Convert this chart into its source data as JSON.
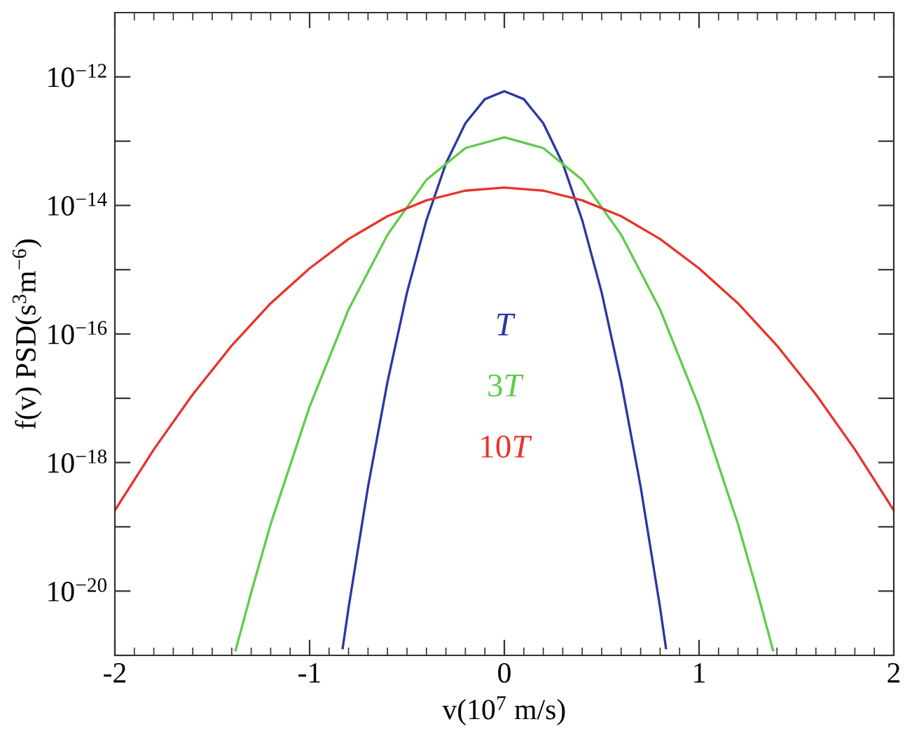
{
  "chart_data": {
    "type": "line",
    "xlabel": "v(10$^{7}$ m/s)",
    "ylabel": "f(v) PSD(s$^{3}$m$^{−6}$)",
    "log": "y",
    "grid": false,
    "legend": false,
    "xlim": [
      -2,
      2
    ],
    "xticks": [
      -2,
      -1,
      0,
      1,
      2
    ],
    "ylim": [
      1e-21,
      1e-11
    ],
    "yticks": [
      {
        "value": 1e-21,
        "label": null
      },
      {
        "value": 1e-20,
        "label": "10$^{−20}$"
      },
      {
        "value": 1e-19,
        "label": null
      },
      {
        "value": 1e-18,
        "label": "10$^{−18}$"
      },
      {
        "value": 1e-17,
        "label": null
      },
      {
        "value": 1e-16,
        "label": "10$^{−16}$"
      },
      {
        "value": 1e-15,
        "label": null
      },
      {
        "value": 1e-14,
        "label": "10$^{−14}$"
      },
      {
        "value": 1e-13,
        "label": null
      },
      {
        "value": 1e-12,
        "label": "10$^{−12}$"
      }
    ],
    "series": [
      {
        "name": "T",
        "color": "#2b37a0",
        "x": [
          -0.83,
          -0.8,
          -0.7,
          -0.6,
          -0.5,
          -0.4,
          -0.3,
          -0.2,
          -0.1,
          0,
          0.1,
          0.2,
          0.3,
          0.4,
          0.5,
          0.6,
          0.7,
          0.8,
          0.83
        ],
        "values": [
          1.3e-21,
          5.5e-21,
          4.2e-19,
          1.8e-17,
          4.4e-16,
          5.9e-15,
          4.5e-14,
          1.9e-13,
          4.5e-13,
          6e-13,
          4.5e-13,
          1.9e-13,
          4.5e-14,
          5.9e-15,
          4.4e-16,
          1.8e-17,
          4.2e-19,
          5.5e-21,
          1.3e-21
        ]
      },
      {
        "name": "3T",
        "color": "#5fcc4a",
        "x": [
          -1.38,
          -1.3,
          -1.2,
          -1.0,
          -0.8,
          -0.6,
          -0.4,
          -0.2,
          0,
          0.2,
          0.4,
          0.6,
          0.8,
          1.0,
          1.2,
          1.3,
          1.38
        ],
        "values": [
          1.2e-21,
          9.5e-21,
          1.1e-19,
          7.4e-18,
          2.4e-16,
          3.5e-15,
          2.5e-14,
          7.8e-14,
          1.15e-13,
          7.8e-14,
          2.5e-14,
          3.5e-15,
          2.4e-16,
          7.4e-18,
          1.1e-19,
          9.5e-21,
          1.2e-21
        ]
      },
      {
        "name": "10T",
        "color": "#e8332a",
        "x": [
          -2,
          -1.8,
          -1.6,
          -1.4,
          -1.2,
          -1.0,
          -0.8,
          -0.6,
          -0.4,
          -0.2,
          0,
          0.2,
          0.4,
          0.6,
          0.8,
          1.0,
          1.2,
          1.4,
          1.6,
          1.8,
          2
        ],
        "values": [
          1.8e-19,
          1.6e-18,
          1.15e-17,
          6.6e-17,
          3e-16,
          1.05e-15,
          3e-15,
          6.8e-15,
          1.2e-14,
          1.7e-14,
          1.9e-14,
          1.7e-14,
          1.2e-14,
          6.8e-15,
          3e-15,
          1.05e-15,
          3e-16,
          6.6e-17,
          1.15e-17,
          1.6e-18,
          1.8e-19
        ]
      }
    ]
  }
}
